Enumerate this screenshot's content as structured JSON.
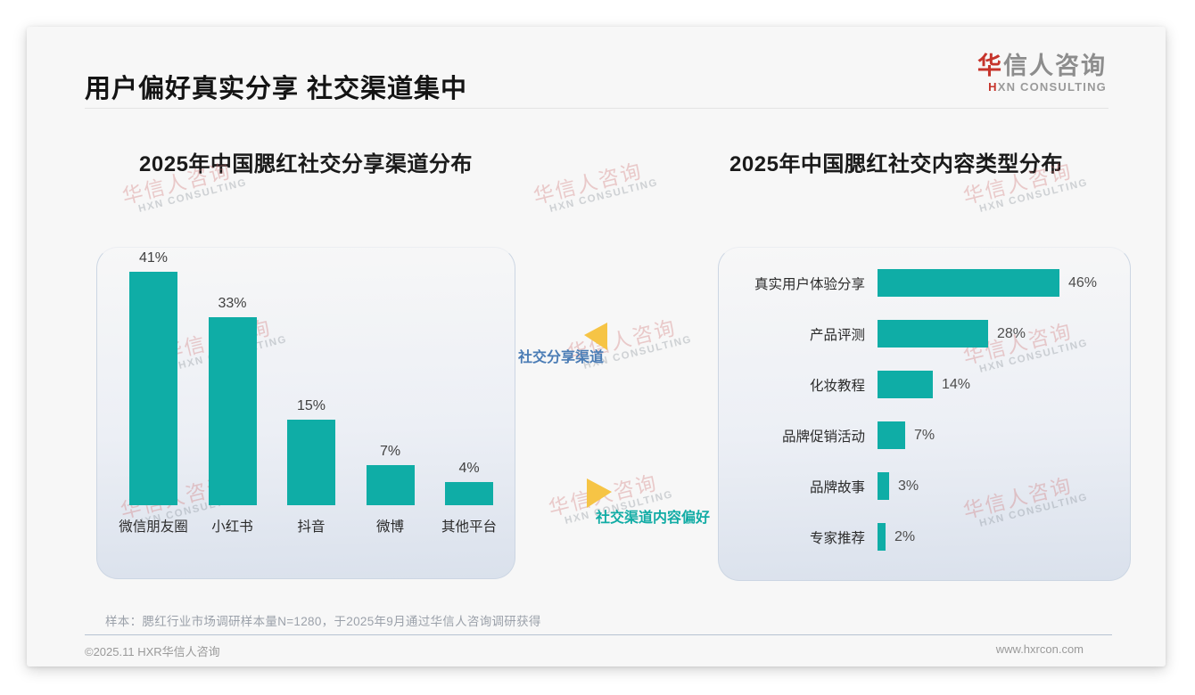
{
  "page": {
    "title": "用户偏好真实分享 社交渠道集中",
    "logo": {
      "cn_first": "华",
      "cn_rest": "信人咨询",
      "en_first": "H",
      "en_rest": "XN CONSULTING"
    },
    "watermark": {
      "cn": "华信人咨询",
      "en": "HXN CONSULTING"
    },
    "sample_note": "样本：腮红行业市场调研样本量N=1280，于2025年9月通过华信人咨询调研获得",
    "footer": {
      "copyright": "©2025.11 HXR华信人咨询",
      "website": "www.hxrcon.com"
    }
  },
  "annotations": {
    "share_channel_label": "社交分享渠道",
    "content_preference_label": "社交渠道内容偏好"
  },
  "colors": {
    "bar_teal": "#0fada6",
    "arrow_yellow": "#f6c445",
    "blue_label": "#4a7cb5",
    "teal_label": "#12aca5",
    "logo_red": "#c6342b"
  },
  "chart_data": [
    {
      "type": "bar",
      "orientation": "vertical",
      "title": "2025年中国腮红社交分享渠道分布",
      "categories": [
        "微信朋友圈",
        "小红书",
        "抖音",
        "微博",
        "其他平台"
      ],
      "values": [
        41,
        33,
        15,
        7,
        4
      ],
      "unit": "%",
      "ylim": [
        0,
        45
      ],
      "grid": false,
      "legend": false,
      "bar_color": "#0fada6"
    },
    {
      "type": "bar",
      "orientation": "horizontal",
      "title": "2025年中国腮红社交内容类型分布",
      "categories": [
        "真实用户体验分享",
        "产品评测",
        "化妆教程",
        "品牌促销活动",
        "品牌故事",
        "专家推荐"
      ],
      "values": [
        46,
        28,
        14,
        7,
        3,
        2
      ],
      "unit": "%",
      "xlim": [
        0,
        50
      ],
      "grid": false,
      "legend": false,
      "bar_color": "#0fada6"
    }
  ]
}
